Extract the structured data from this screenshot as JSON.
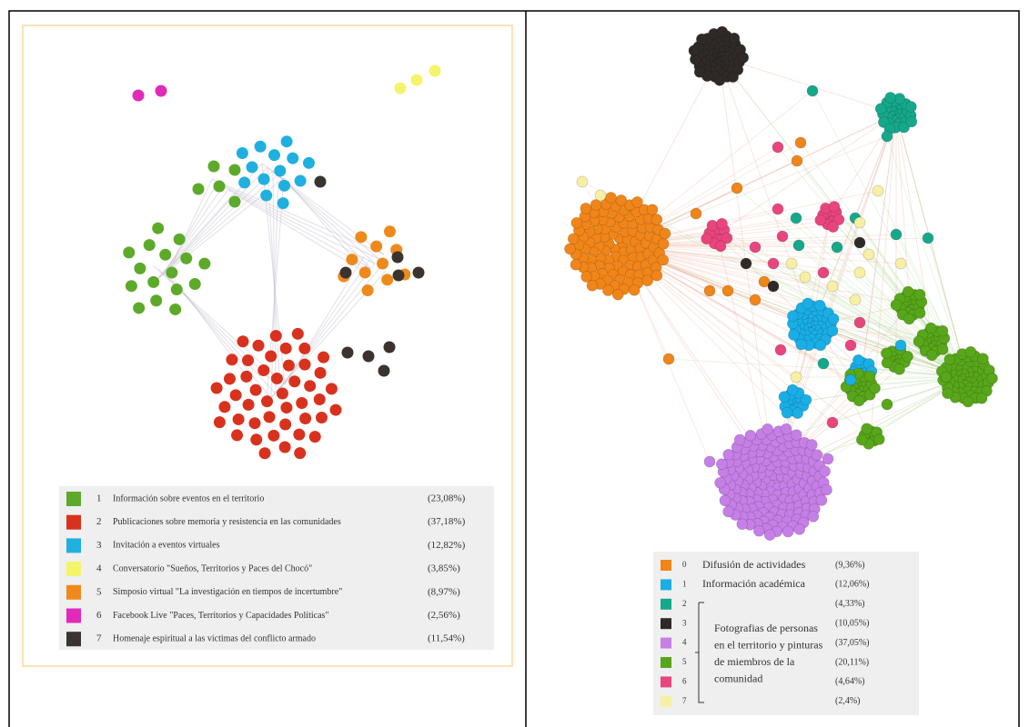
{
  "left_legend": {
    "items": [
      {
        "id": "1",
        "label": "Información sobre eventos en el territorio",
        "percent": "(23,08%)",
        "color": "#5daa2a"
      },
      {
        "id": "2",
        "label": "Publicaciones sobre memoria y resistencia en las comunidades",
        "percent": "(37,18%)",
        "color": "#d8321e"
      },
      {
        "id": "3",
        "label": "Invitación a eventos virtuales",
        "percent": "(12,82%)",
        "color": "#20b0e0"
      },
      {
        "id": "4",
        "label": "Conversatorio \"Sueños, Territorios y Paces del Chocó\"",
        "percent": "(3,85%)",
        "color": "#f4f46a"
      },
      {
        "id": "5",
        "label": "Simposio virtual \"La investigación en tiempos de incertumbre\"",
        "percent": "(8,97%)",
        "color": "#ee8a1c"
      },
      {
        "id": "6",
        "label": "Facebook Live \"Paces, Territorios y Capacidades Políticas\"",
        "percent": "(2,56%)",
        "color": "#e02ab8"
      },
      {
        "id": "7",
        "label": "Homenaje espiritual a las víctimas del conflicto armado",
        "percent": "(11,54%)",
        "color": "#3a3330"
      }
    ]
  },
  "right_legend": {
    "items": [
      {
        "id": "0",
        "label": "Difusión de actividades",
        "percent": "(9,36%)",
        "color": "#f08519"
      },
      {
        "id": "1",
        "label": "Información académica",
        "percent": "(12,06%)",
        "color": "#1aaee6"
      },
      {
        "id": "2",
        "percent": "(4,33%)",
        "color": "#16a88a"
      },
      {
        "id": "3",
        "percent": "(10,05%)",
        "color": "#2f2a27"
      },
      {
        "id": "4",
        "percent": "(37,05%)",
        "color": "#c57fe6"
      },
      {
        "id": "5",
        "percent": "(20,11%)",
        "color": "#58a61a"
      },
      {
        "id": "6",
        "percent": "(4,64%)",
        "color": "#e8457e"
      },
      {
        "id": "7",
        "percent": "(2,4%)",
        "color": "#f7f0a4"
      }
    ],
    "group_label": [
      "Fotografias de personas",
      "en el territorio y pinturas",
      "de miembros de la",
      "comunidad"
    ]
  }
}
